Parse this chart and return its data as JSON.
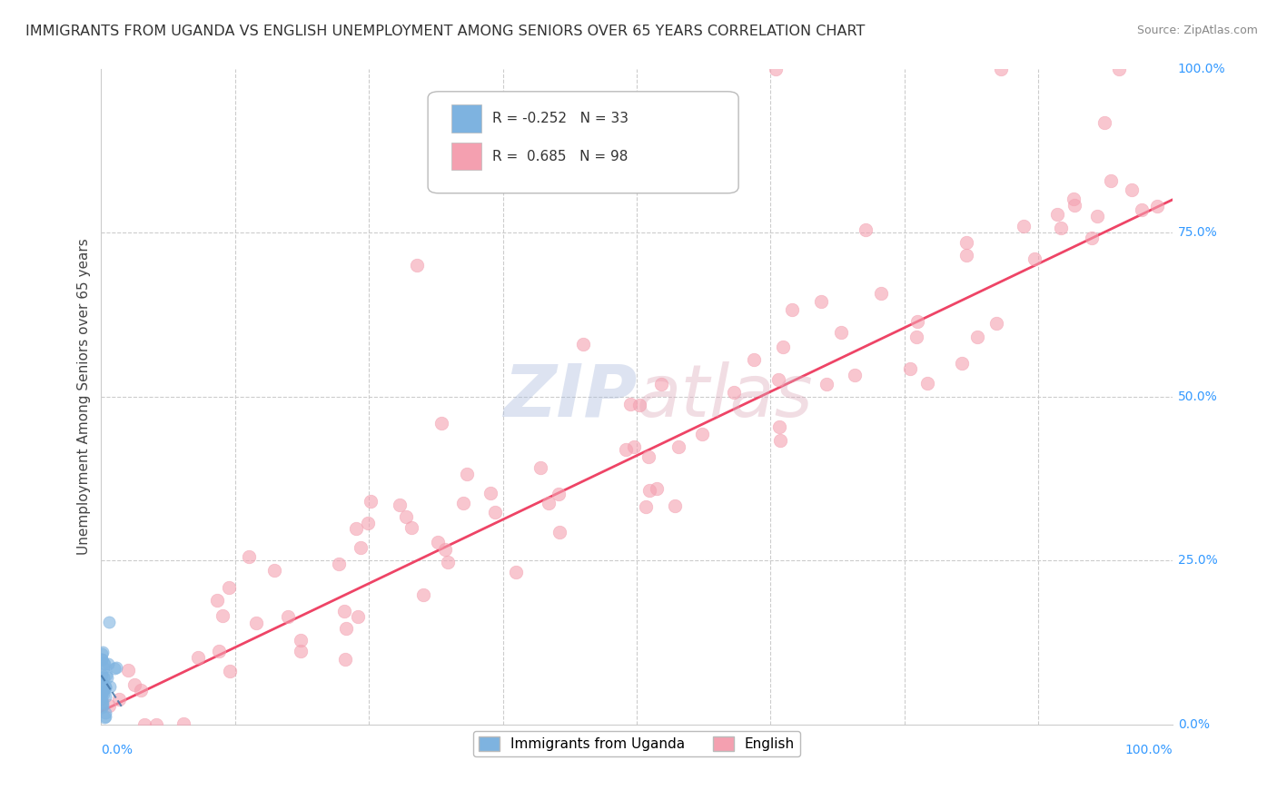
{
  "title": "IMMIGRANTS FROM UGANDA VS ENGLISH UNEMPLOYMENT AMONG SENIORS OVER 65 YEARS CORRELATION CHART",
  "source": "Source: ZipAtlas.com",
  "ylabel": "Unemployment Among Seniors over 65 years",
  "y_right_labels": [
    "0.0%",
    "25.0%",
    "50.0%",
    "75.0%",
    "100.0%"
  ],
  "legend_blue_r": "-0.252",
  "legend_blue_n": "33",
  "legend_pink_r": "0.685",
  "legend_pink_n": "98",
  "blue_color": "#7EB3E0",
  "pink_color": "#F4A0B0",
  "blue_line_color": "#4477AA",
  "pink_line_color": "#EE4466",
  "watermark_zip_color": "#AABBDD",
  "watermark_atlas_color": "#DDAABB",
  "legend_label_blue": "Immigrants from Uganda",
  "legend_label_pink": "English"
}
